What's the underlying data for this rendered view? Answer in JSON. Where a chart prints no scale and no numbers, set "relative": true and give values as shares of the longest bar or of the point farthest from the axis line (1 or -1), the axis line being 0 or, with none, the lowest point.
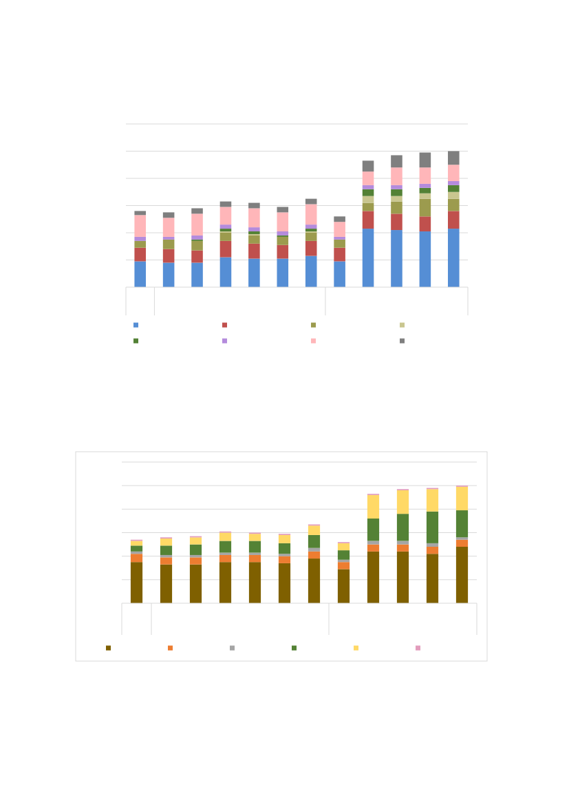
{
  "chart_data": [
    {
      "type": "bar",
      "stacked": true,
      "relative": true,
      "grid": "y",
      "categories": [
        null,
        null,
        null,
        null,
        null,
        null,
        null,
        null,
        null,
        null,
        null,
        null
      ],
      "series": [
        {
          "color": "#558ed5",
          "values": [
            0.19,
            0.18,
            0.18,
            0.22,
            0.21,
            0.21,
            0.23,
            0.19,
            0.43,
            0.42,
            0.41,
            0.43
          ]
        },
        {
          "color": "#c0504d",
          "values": [
            0.1,
            0.1,
            0.09,
            0.12,
            0.11,
            0.1,
            0.11,
            0.1,
            0.13,
            0.12,
            0.11,
            0.13
          ]
        },
        {
          "color": "#9c9b4e",
          "values": [
            0.05,
            0.07,
            0.07,
            0.06,
            0.06,
            0.06,
            0.06,
            0.06,
            0.06,
            0.09,
            0.13,
            0.09
          ]
        },
        {
          "color": "#c9c68f",
          "values": [
            0,
            0,
            0,
            0.01,
            0.01,
            0,
            0.01,
            0,
            0.05,
            0.04,
            0.04,
            0.05
          ]
        },
        {
          "color": "#538135",
          "values": [
            0,
            0,
            0.01,
            0.02,
            0.02,
            0.01,
            0.02,
            0,
            0.05,
            0.05,
            0.04,
            0.05
          ]
        },
        {
          "color": "#b48bdc",
          "values": [
            0.03,
            0.02,
            0.03,
            0.03,
            0.03,
            0.03,
            0.03,
            0.02,
            0.03,
            0.03,
            0.03,
            0.03
          ]
        },
        {
          "color": "#ffb6b9",
          "values": [
            0.16,
            0.14,
            0.16,
            0.13,
            0.14,
            0.14,
            0.15,
            0.11,
            0.1,
            0.13,
            0.12,
            0.12
          ]
        },
        {
          "color": "#7f7f7f",
          "values": [
            0.03,
            0.04,
            0.04,
            0.04,
            0.04,
            0.04,
            0.04,
            0.04,
            0.08,
            0.09,
            0.11,
            0.1
          ]
        }
      ]
    },
    {
      "type": "bar",
      "stacked": true,
      "relative": true,
      "grid": "y",
      "categories": [
        null,
        null,
        null,
        null,
        null,
        null,
        null,
        null,
        null,
        null,
        null,
        null
      ],
      "series": [
        {
          "color": "#7f6000",
          "values": [
            0.35,
            0.33,
            0.33,
            0.35,
            0.35,
            0.34,
            0.38,
            0.29,
            0.44,
            0.44,
            0.42,
            0.48
          ]
        },
        {
          "color": "#ed7d31",
          "values": [
            0.07,
            0.06,
            0.06,
            0.06,
            0.06,
            0.06,
            0.06,
            0.06,
            0.06,
            0.06,
            0.06,
            0.06
          ]
        },
        {
          "color": "#a5a5a5",
          "values": [
            0.02,
            0.02,
            0.02,
            0.02,
            0.02,
            0.02,
            0.03,
            0.02,
            0.03,
            0.03,
            0.03,
            0.02
          ]
        },
        {
          "color": "#548235",
          "values": [
            0.05,
            0.08,
            0.09,
            0.1,
            0.1,
            0.09,
            0.11,
            0.08,
            0.19,
            0.23,
            0.27,
            0.23
          ]
        },
        {
          "color": "#ffd966",
          "values": [
            0.04,
            0.06,
            0.06,
            0.07,
            0.06,
            0.07,
            0.08,
            0.06,
            0.2,
            0.2,
            0.19,
            0.2
          ]
        },
        {
          "color": "#e29cbc",
          "values": [
            0.01,
            0.01,
            0.01,
            0.01,
            0.01,
            0.01,
            0.01,
            0.01,
            0.01,
            0.01,
            0.01,
            0.01
          ]
        }
      ]
    }
  ]
}
